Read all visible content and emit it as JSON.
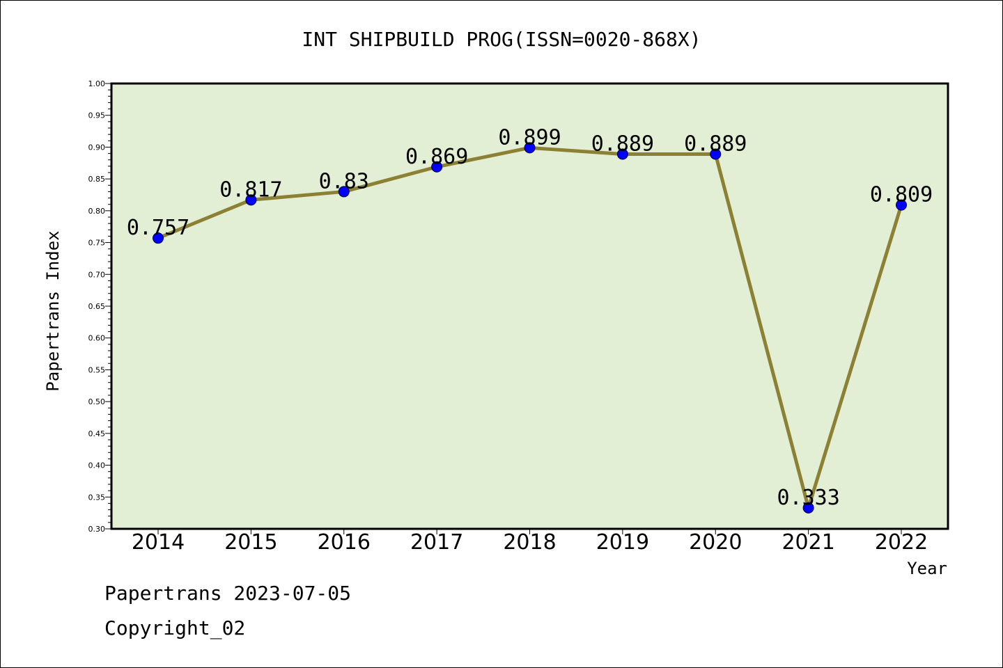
{
  "chart_data": {
    "type": "line",
    "title": "INT SHIPBUILD PROG(ISSN=0020-868X)",
    "xlabel": "Year",
    "ylabel": "Papertrans Index",
    "categories": [
      "2014",
      "2015",
      "2016",
      "2017",
      "2018",
      "2019",
      "2020",
      "2021",
      "2022"
    ],
    "values": [
      0.757,
      0.817,
      0.83,
      0.869,
      0.899,
      0.889,
      0.889,
      0.333,
      0.809
    ],
    "data_labels": [
      "0.757",
      "0.817",
      "0.83",
      "0.869",
      "0.899",
      "0.889",
      "0.889",
      "0.333",
      "0.809"
    ],
    "ylim": [
      0.3,
      1.0
    ],
    "yticks": [
      "0.30",
      "0.35",
      "0.40",
      "0.45",
      "0.50",
      "0.55",
      "0.60",
      "0.65",
      "0.70",
      "0.75",
      "0.80",
      "0.85",
      "0.90",
      "0.95",
      "1.00"
    ],
    "grid": false,
    "legend": "none",
    "colors": {
      "plot_background": "#e2efd5",
      "line": "#8b8033",
      "marker": "#0000ff"
    }
  },
  "footer": {
    "line1": "Papertrans 2023-07-05",
    "line2": "Copyright_02"
  }
}
